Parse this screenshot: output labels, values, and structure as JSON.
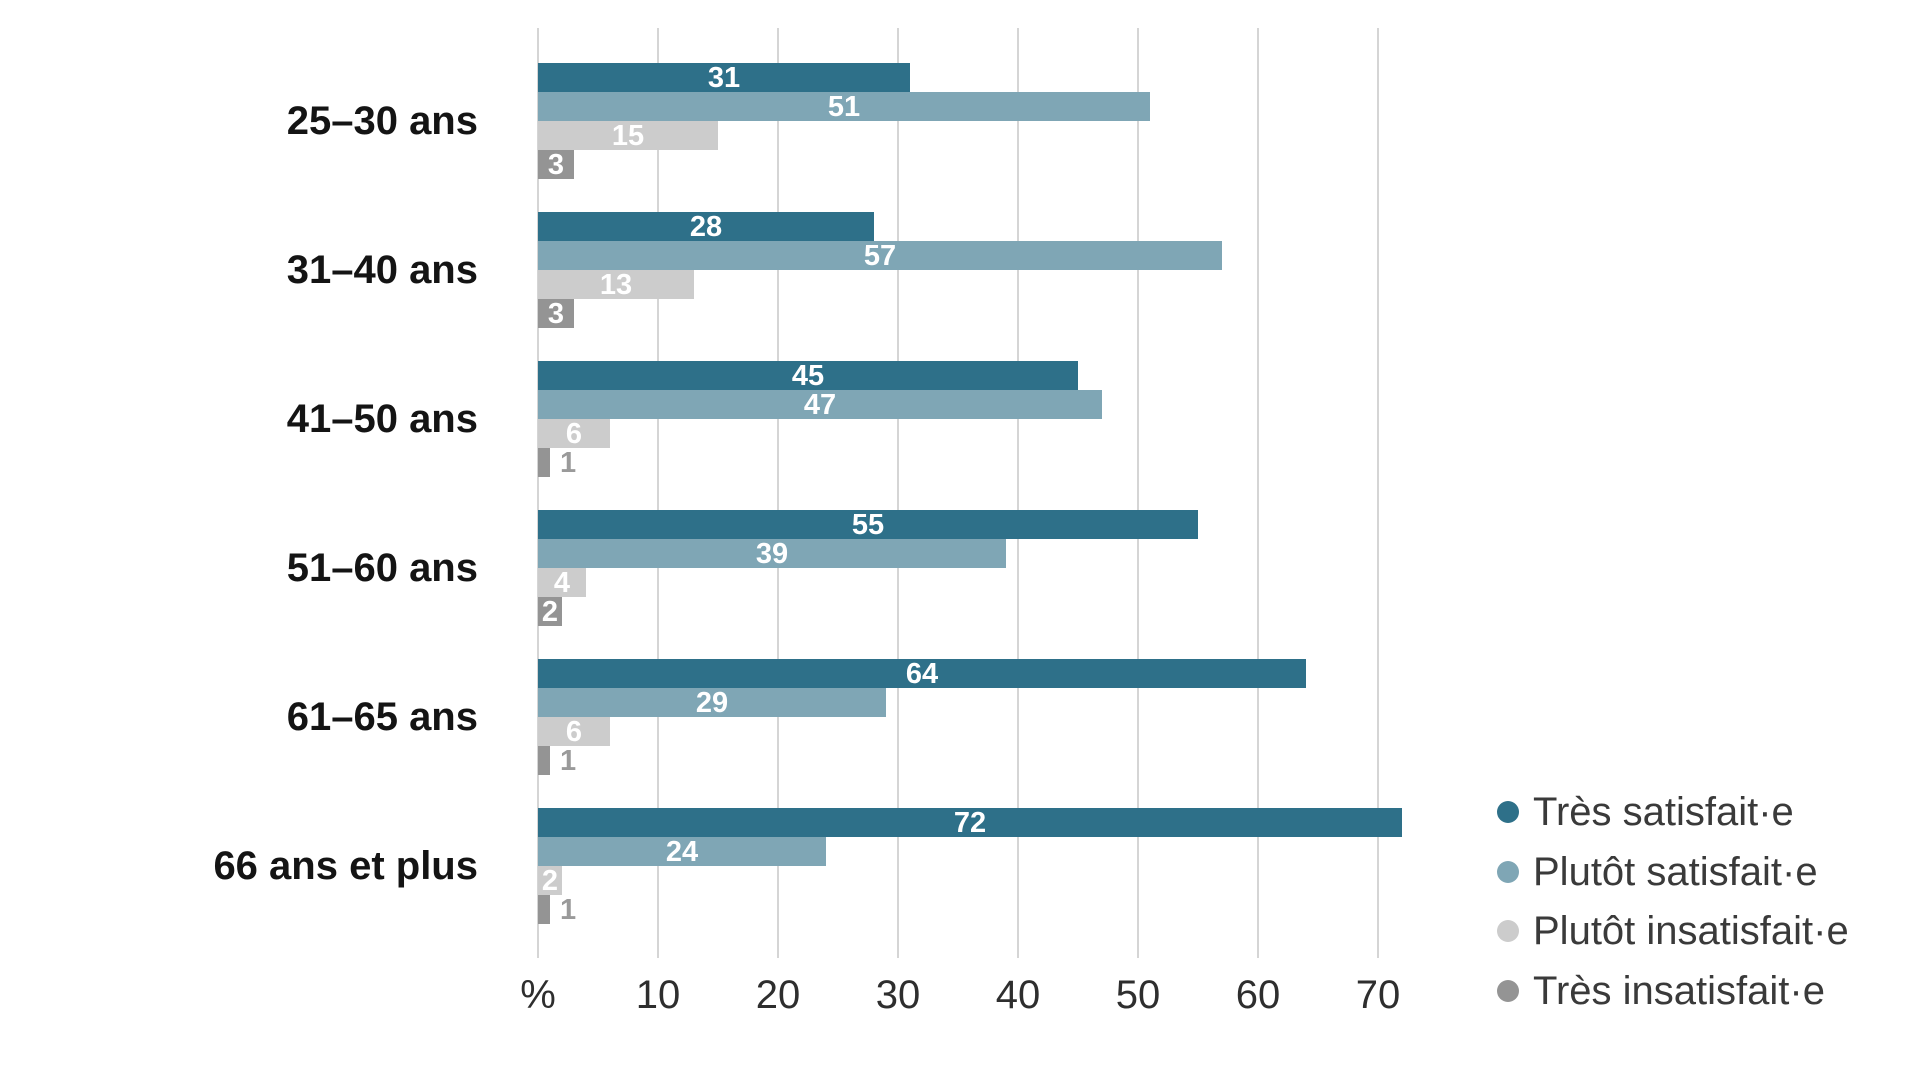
{
  "chart_data": {
    "type": "bar",
    "orientation": "horizontal",
    "title": "",
    "categories": [
      "25–30 ans",
      "31–40 ans",
      "41–50 ans",
      "51–60 ans",
      "61–65 ans",
      "66 ans et plus"
    ],
    "series": [
      {
        "name": "Très satisfait·e",
        "color": "#2E7089",
        "values": [
          31,
          28,
          45,
          55,
          64,
          72
        ]
      },
      {
        "name": "Plutôt satisfait·e",
        "color": "#7FA6B5",
        "values": [
          51,
          57,
          47,
          39,
          29,
          24
        ]
      },
      {
        "name": "Plutôt insatisfait·e",
        "color": "#CCCCCC",
        "values": [
          15,
          13,
          6,
          4,
          6,
          2
        ]
      },
      {
        "name": "Très insatisfait·e",
        "color": "#949494",
        "values": [
          3,
          3,
          1,
          2,
          1,
          1
        ]
      }
    ],
    "x_axis": {
      "unit_symbol": "%",
      "tick_labels": [
        "%",
        "10",
        "20",
        "30",
        "40",
        "50",
        "60",
        "70"
      ],
      "tick_values": [
        0,
        10,
        20,
        30,
        40,
        50,
        60,
        70
      ],
      "xlim": [
        0,
        76
      ]
    },
    "grid": true,
    "legend_position": "bottom-right",
    "value_labels": true,
    "colors": {
      "gridline": "#d5d5d5",
      "value_label_inside": "#ffffff",
      "value_label_outside": "#9a9a9a",
      "axis_text": "#2e2e2e",
      "category_text": "#141414",
      "legend_text": "#3a3a3a"
    }
  }
}
